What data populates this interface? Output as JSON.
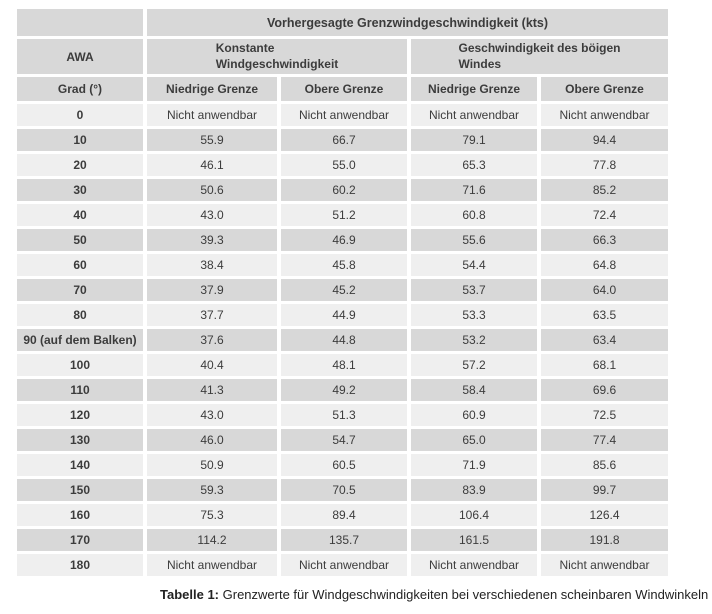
{
  "colors": {
    "header_bg": "#d8d8d8",
    "row_light_bg": "#efefef",
    "row_dark_bg": "#d8d8d8",
    "page_bg": "#ffffff",
    "text": "#2d2d2d"
  },
  "table": {
    "top_header": "Vorhergesagte Grenzwindgeschwindigkeit (kts)",
    "awa_header": "AWA",
    "group_constant": "Konstante\nWindgeschwindigkeit",
    "group_gust": "Geschwindigkeit des böigen\nWindes",
    "unit_header": "Grad (°)",
    "sub_headers": [
      "Niedrige Grenze",
      "Obere Grenze",
      "Niedrige Grenze",
      "Obere Grenze"
    ],
    "not_applicable": "Nicht anwendbar",
    "rows": [
      {
        "awa": "0",
        "values": [
          "Nicht anwendbar",
          "Nicht anwendbar",
          "Nicht anwendbar",
          "Nicht anwendbar"
        ]
      },
      {
        "awa": "10",
        "values": [
          "55.9",
          "66.7",
          "79.1",
          "94.4"
        ]
      },
      {
        "awa": "20",
        "values": [
          "46.1",
          "55.0",
          "65.3",
          "77.8"
        ]
      },
      {
        "awa": "30",
        "values": [
          "50.6",
          "60.2",
          "71.6",
          "85.2"
        ]
      },
      {
        "awa": "40",
        "values": [
          "43.0",
          "51.2",
          "60.8",
          "72.4"
        ]
      },
      {
        "awa": "50",
        "values": [
          "39.3",
          "46.9",
          "55.6",
          "66.3"
        ]
      },
      {
        "awa": "60",
        "values": [
          "38.4",
          "45.8",
          "54.4",
          "64.8"
        ]
      },
      {
        "awa": "70",
        "values": [
          "37.9",
          "45.2",
          "53.7",
          "64.0"
        ]
      },
      {
        "awa": "80",
        "values": [
          "37.7",
          "44.9",
          "53.3",
          "63.5"
        ]
      },
      {
        "awa": "90 (auf dem Balken)",
        "values": [
          "37.6",
          "44.8",
          "53.2",
          "63.4"
        ]
      },
      {
        "awa": "100",
        "values": [
          "40.4",
          "48.1",
          "57.2",
          "68.1"
        ]
      },
      {
        "awa": "110",
        "values": [
          "41.3",
          "49.2",
          "58.4",
          "69.6"
        ]
      },
      {
        "awa": "120",
        "values": [
          "43.0",
          "51.3",
          "60.9",
          "72.5"
        ]
      },
      {
        "awa": "130",
        "values": [
          "46.0",
          "54.7",
          "65.0",
          "77.4"
        ]
      },
      {
        "awa": "140",
        "values": [
          "50.9",
          "60.5",
          "71.9",
          "85.6"
        ]
      },
      {
        "awa": "150",
        "values": [
          "59.3",
          "70.5",
          "83.9",
          "99.7"
        ]
      },
      {
        "awa": "160",
        "values": [
          "75.3",
          "89.4",
          "106.4",
          "126.4"
        ]
      },
      {
        "awa": "170",
        "values": [
          "114.2",
          "135.7",
          "161.5",
          "191.8"
        ]
      },
      {
        "awa": "180",
        "values": [
          "Nicht anwendbar",
          "Nicht anwendbar",
          "Nicht anwendbar",
          "Nicht anwendbar"
        ]
      }
    ]
  },
  "caption": {
    "label": "Tabelle 1:",
    "text": " Grenzwerte für Windgeschwindigkeiten bei verschiedenen scheinbaren Windwinkeln"
  }
}
